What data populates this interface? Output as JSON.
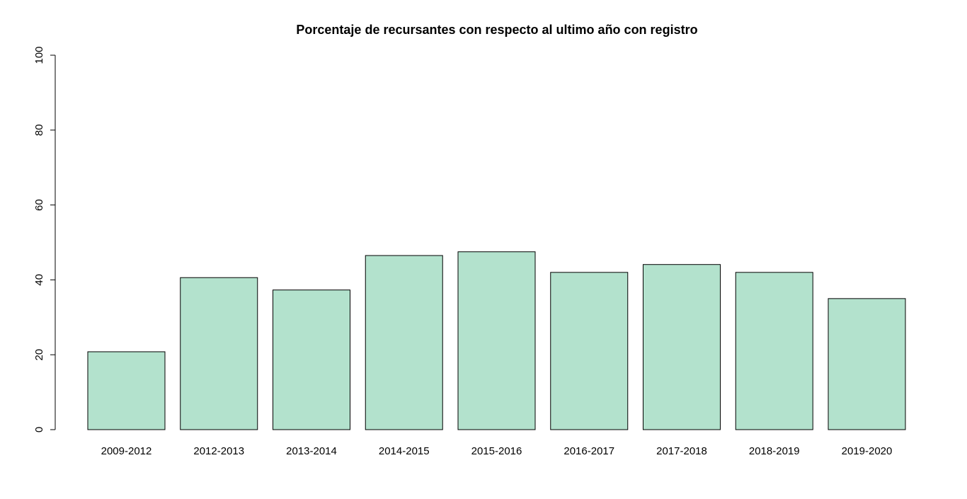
{
  "chart_data": {
    "type": "bar",
    "title": "Porcentaje de recursantes con respecto al ultimo año con registro",
    "xlabel": "",
    "ylabel": "",
    "categories": [
      "2009-2012",
      "2012-2013",
      "2013-2014",
      "2014-2015",
      "2015-2016",
      "2016-2017",
      "2017-2018",
      "2018-2019",
      "2019-2020"
    ],
    "values": [
      20.8,
      40.6,
      37.3,
      46.5,
      47.5,
      42.0,
      44.1,
      42.0,
      35.0
    ],
    "ylim": [
      0,
      100
    ],
    "yticks": [
      "0",
      "20",
      "40",
      "60",
      "80",
      "100"
    ],
    "grid": false,
    "bar_color": "#b3e2cd",
    "bar_border_color": "#000000"
  }
}
